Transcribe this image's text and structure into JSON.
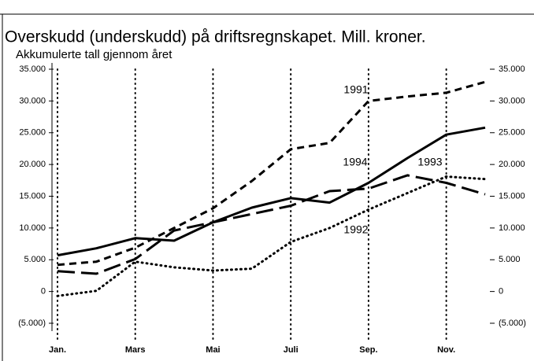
{
  "chart_data": {
    "type": "line",
    "title": "Overskudd (underskudd) på driftsregnskapet. Mill. kroner.",
    "subtitle": "Akkumulerte tall gjennom året",
    "categories": [
      "Jan.",
      null,
      "Mars",
      null,
      "Mai",
      null,
      "Juli",
      null,
      "Sep.",
      null,
      "Nov.",
      null
    ],
    "series": [
      {
        "name": "1994",
        "color": "#000000",
        "style": "solid",
        "values": [
          5700,
          6800,
          8400,
          8000,
          10900,
          13200,
          14700,
          14000,
          17100,
          21000,
          24700,
          25800
        ]
      },
      {
        "name": "1991",
        "color": "#000000",
        "style": "dashed",
        "values": [
          4200,
          4700,
          6900,
          10000,
          13100,
          17400,
          22400,
          23400,
          30000,
          30700,
          31300,
          33000
        ]
      },
      {
        "name": "1993",
        "color": "#000000",
        "style": "longdash",
        "values": [
          3200,
          2800,
          5100,
          9600,
          10900,
          12200,
          13500,
          15800,
          16200,
          18300,
          17100,
          15300
        ]
      },
      {
        "name": "1992",
        "color": "#000000",
        "style": "dotted",
        "values": [
          -700,
          100,
          4700,
          3800,
          3300,
          3600,
          7800,
          10000,
          12900,
          15500,
          18100,
          17700
        ]
      }
    ],
    "ylim": [
      -5000,
      35000
    ],
    "yticks": [
      {
        "value": -5000,
        "label": "(5.000)"
      },
      0,
      {
        "value": 5000,
        "label": "5.000"
      },
      {
        "value": 10000,
        "label": "10.000"
      },
      {
        "value": 15000,
        "label": "15.000"
      },
      {
        "value": 20000,
        "label": "20.000"
      },
      {
        "value": 25000,
        "label": "25.000"
      },
      {
        "value": 30000,
        "label": "30.000"
      },
      {
        "value": 35000,
        "label": "35.000"
      }
    ],
    "grid": true
  }
}
